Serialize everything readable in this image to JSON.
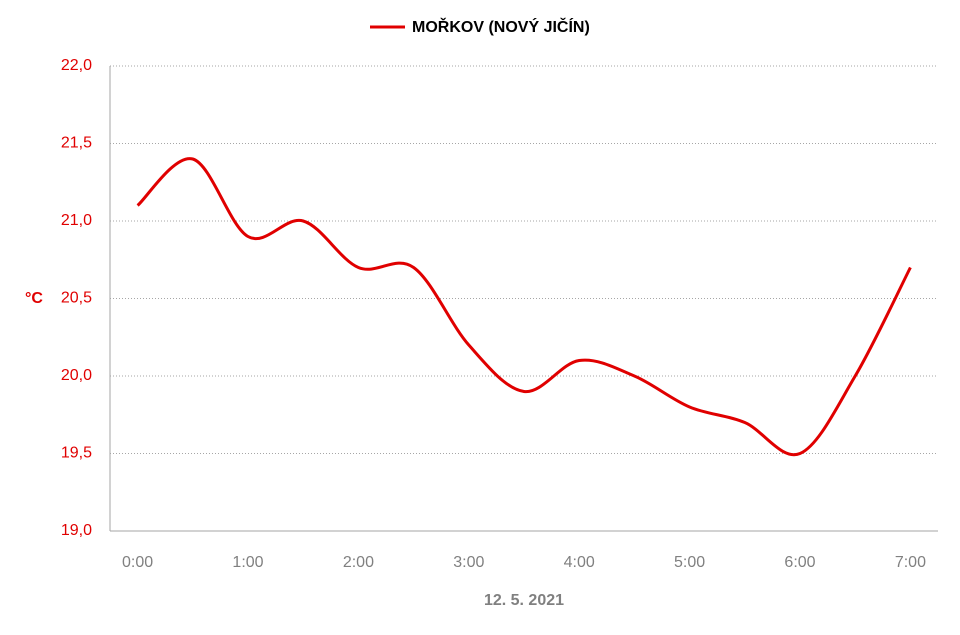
{
  "chart_data": {
    "type": "line",
    "legend_title": "MOŘKOV (NOVÝ JIČÍN)",
    "x_label": "12. 5. 2021",
    "y_label": "°C",
    "categories": [
      "0:00",
      null,
      "1:00",
      null,
      "2:00",
      null,
      "3:00",
      null,
      "4:00",
      null,
      "5:00",
      null,
      "6:00",
      null,
      "7:00"
    ],
    "series": [
      {
        "name": "MOŘKOV (NOVÝ JIČÍN)",
        "color": "#e00000",
        "values": [
          21.1,
          21.4,
          20.9,
          21.0,
          20.7,
          20.7,
          20.2,
          19.9,
          20.1,
          20.0,
          19.8,
          19.7,
          19.5,
          20.0,
          20.7
        ]
      }
    ],
    "ylim": [
      19,
      22
    ],
    "yticks": [
      {
        "value": 19,
        "label": "19,0"
      },
      {
        "value": 19.5,
        "label": "19,5"
      },
      {
        "value": 20,
        "label": "20,0"
      },
      {
        "value": 20.5,
        "label": "20,5"
      },
      {
        "value": 21,
        "label": "21,0"
      },
      {
        "value": 21.5,
        "label": "21,5"
      },
      {
        "value": 22,
        "label": "22,0"
      }
    ],
    "grid": true,
    "smooth": true,
    "tick_label_color": "#e00000",
    "x_tick_label_color": "#808080"
  }
}
